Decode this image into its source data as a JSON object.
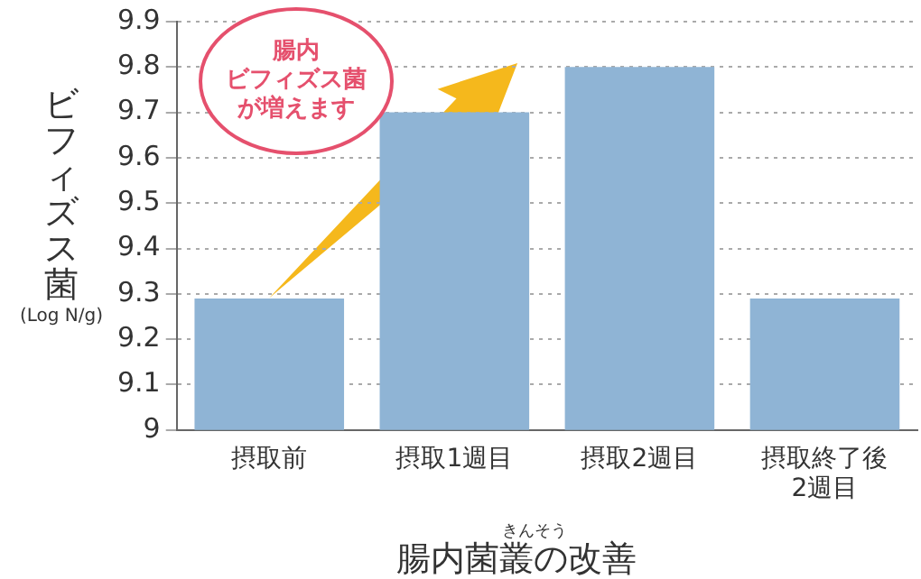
{
  "chart_data": {
    "type": "bar",
    "ylabel": "ビフィズス菌\n(Log N/g)",
    "xlabel": "腸内菌叢の改善",
    "categories": [
      "摂取前",
      "摂取1週目",
      "摂取2週目",
      "摂取終了後\n2週目"
    ],
    "values": [
      9.29,
      9.7,
      9.8,
      9.29
    ],
    "color": "#8fb4d5",
    "ylim": [
      9,
      9.9
    ],
    "yticks": [
      9,
      9.1,
      9.2,
      9.3,
      9.4,
      9.5,
      9.6,
      9.7,
      9.8,
      9.9
    ],
    "grid": "y",
    "annotations": [
      "腸内",
      "ビフィズス菌",
      "が増えます",
      "きんそう"
    ]
  }
}
